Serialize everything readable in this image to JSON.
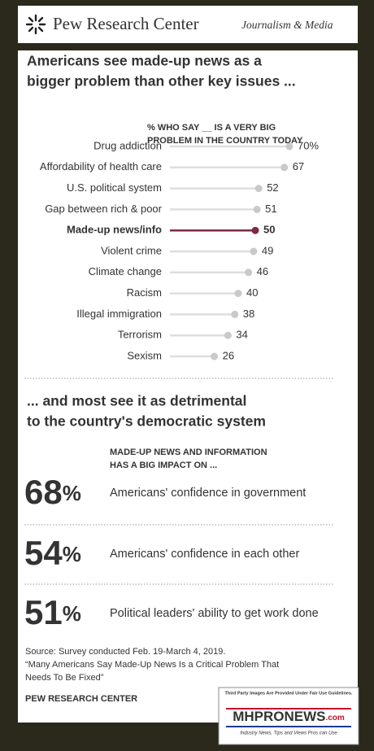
{
  "header": {
    "brand": "Pew Research Center",
    "section": "Journalism & Media"
  },
  "chart_data": {
    "type": "lollipop",
    "title": [
      "Americans see made-up news as a",
      "bigger problem than other key issues ..."
    ],
    "subtitle": [
      "% WHO SAY __ IS A VERY BIG",
      "PROBLEM IN THE COUNTRY TODAY"
    ],
    "categories": [
      "Drug addiction",
      "Affordability of health care",
      "U.S. political system",
      "Gap between rich & poor",
      "Made-up news/info",
      "Violent crime",
      "Climate change",
      "Racism",
      "Illegal immigration",
      "Terrorism",
      "Sexism"
    ],
    "values": [
      70,
      67,
      52,
      51,
      50,
      49,
      46,
      40,
      38,
      34,
      26
    ],
    "value_labels": [
      "70%",
      "67",
      "52",
      "51",
      "50",
      "49",
      "46",
      "40",
      "38",
      "34",
      "26"
    ],
    "color": "#c9c9c9",
    "colors": [
      "#c9c9c9",
      "#c9c9c9",
      "#c9c9c9",
      "#c9c9c9",
      "#7a2c44",
      "#c9c9c9",
      "#c9c9c9",
      "#c9c9c9",
      "#c9c9c9",
      "#c9c9c9",
      "#c9c9c9"
    ],
    "xlim": [
      0,
      70
    ]
  },
  "impact": {
    "title": [
      "... and most see it as detrimental",
      "to the country's democratic system"
    ],
    "subtitle": [
      "MADE-UP NEWS AND INFORMATION",
      "HAS A BIG IMPACT ON ..."
    ],
    "items": [
      {
        "number": "68",
        "unit": "%",
        "label": "Americans' confidence in government"
      },
      {
        "number": "54",
        "unit": "%",
        "label": "Americans' confidence in each other"
      },
      {
        "number": "51",
        "unit": "%",
        "label": "Political leaders' ability to get work done"
      }
    ]
  },
  "footer": {
    "source": [
      "Source: Survey conducted Feb. 19-March 4, 2019.",
      "“Many Americans Say Made-Up News Is a Critical Problem That",
      "Needs To Be Fixed”"
    ],
    "org": "PEW RESEARCH CENTER"
  },
  "watermark": {
    "notice": "Third Party Images Are Provided Under Fair Use Guidelines.",
    "brand": "MHPRONEWS",
    "domain": ".com",
    "tagline": "Industry News, Tips and Views Pros can Use"
  }
}
